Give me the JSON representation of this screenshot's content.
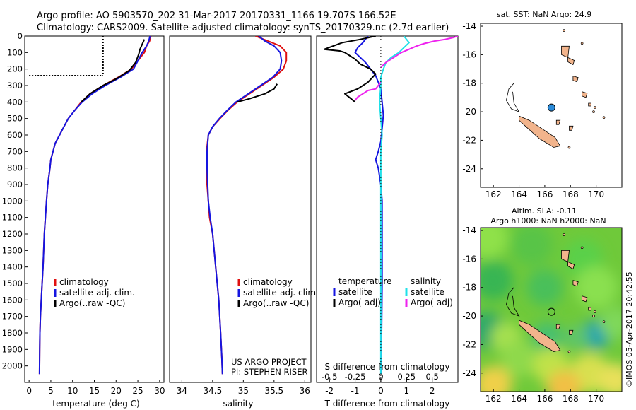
{
  "header": {
    "line1": "Argo profile: AO 5903570_202 31-Mar-2017 20170331_1166 19.707S 166.52E",
    "line2": "Climatology: CARS2009. Satellite-adjusted climatology: synTS_20170329.nc (2.7d earlier)"
  },
  "credit": {
    "project": "US ARGO PROJECT",
    "pi": "PI: STEPHEN RISER",
    "stamp": "©IMOS 05-Apr-2017 20:42:55"
  },
  "colors": {
    "climatology": "#e01010",
    "satellite": "#1515e0",
    "argo": "#000000",
    "salinity_satellite": "#20e0e8",
    "salinity_argo": "#ee22ee",
    "land": "#f2b48c",
    "station": "#2a8ad8"
  },
  "chart_data": [
    {
      "id": "temperature",
      "type": "line",
      "xlabel": "temperature (deg C)",
      "ylabel": "",
      "xlim": [
        -1,
        31
      ],
      "ylim": [
        2100,
        0
      ],
      "xticks": [
        0,
        5,
        10,
        15,
        20,
        25,
        30
      ],
      "yticks": [
        0,
        100,
        200,
        300,
        400,
        500,
        600,
        700,
        800,
        900,
        1000,
        1100,
        1200,
        1300,
        1400,
        1500,
        1600,
        1700,
        1800,
        1900,
        2000
      ],
      "legend": [
        "climatology",
        "satellite-adj. clim.",
        "Argo(..raw -QC)"
      ],
      "series": [
        {
          "name": "climatology",
          "color": "#e01010",
          "x": [
            28,
            27.7,
            27,
            26.5,
            25,
            23.5,
            20.5,
            17,
            14,
            12,
            10.5,
            9,
            8,
            7,
            6,
            5.5,
            5,
            4.8,
            4.3,
            4,
            3.5,
            3.2,
            3,
            2.8,
            2.6,
            2.5,
            2.45,
            2.4
          ],
          "y": [
            0,
            30,
            60,
            100,
            150,
            200,
            250,
            300,
            350,
            400,
            450,
            500,
            550,
            600,
            650,
            700,
            750,
            800,
            900,
            1000,
            1200,
            1400,
            1500,
            1600,
            1700,
            1800,
            1900,
            2050
          ]
        },
        {
          "name": "satellite-adj. clim.",
          "color": "#1515e0",
          "x": [
            27.8,
            27.5,
            27,
            26,
            25,
            24,
            21,
            17.5,
            14.5,
            12.2,
            10.5,
            9,
            8,
            7,
            6,
            5.5,
            5,
            4.8,
            4.3,
            4,
            3.5,
            3.2,
            3,
            2.8,
            2.6,
            2.5,
            2.45,
            2.4
          ],
          "y": [
            0,
            30,
            60,
            100,
            150,
            200,
            250,
            300,
            350,
            400,
            450,
            500,
            550,
            600,
            650,
            700,
            750,
            800,
            900,
            1000,
            1200,
            1400,
            1500,
            1600,
            1700,
            1800,
            1900,
            2050
          ]
        },
        {
          "name": "Argo(..raw -QC)",
          "color": "#000000",
          "x": [
            26.5,
            26,
            25.5,
            25.2,
            24.5,
            23,
            20,
            17,
            14,
            12
          ],
          "y": [
            20,
            50,
            80,
            110,
            160,
            210,
            260,
            300,
            350,
            400
          ]
        }
      ],
      "marks": [
        {
          "name": "Argo dropout vertical",
          "color": "#000000",
          "x": [
            17,
            17
          ],
          "y": [
            0,
            240
          ]
        },
        {
          "name": "Argo dropout horizontal",
          "color": "#000000",
          "x": [
            0,
            17
          ],
          "y": [
            240,
            240
          ]
        }
      ]
    },
    {
      "id": "salinity",
      "type": "line",
      "xlabel": "salinity",
      "ylabel": "",
      "xlim": [
        33.8,
        36.1
      ],
      "ylim": [
        2100,
        0
      ],
      "xticks": [
        34,
        34.5,
        35,
        35.5,
        36
      ],
      "xticklabels": [
        "34",
        "34.5",
        "35",
        "35.5",
        "36"
      ],
      "legend": [
        "climatology",
        "satellite-adj. clim.",
        "Argo(..raw -QC)"
      ],
      "series": [
        {
          "name": "climatology",
          "color": "#e01010",
          "x": [
            35.2,
            35.4,
            35.6,
            35.7,
            35.7,
            35.65,
            35.5,
            35.3,
            35.1,
            34.9,
            34.75,
            34.62,
            34.5,
            34.43,
            34.4,
            34.4,
            34.41,
            34.43,
            34.45,
            34.5,
            34.55,
            34.6,
            34.63,
            34.65,
            34.66
          ],
          "y": [
            0,
            30,
            60,
            100,
            150,
            200,
            250,
            300,
            350,
            400,
            450,
            500,
            550,
            600,
            700,
            800,
            900,
            1000,
            1100,
            1200,
            1400,
            1600,
            1800,
            1950,
            2050
          ]
        },
        {
          "name": "satellite-adj. clim.",
          "color": "#1515e0",
          "x": [
            35.25,
            35.35,
            35.5,
            35.6,
            35.62,
            35.6,
            35.48,
            35.28,
            35.08,
            34.88,
            34.74,
            34.61,
            34.5,
            34.43,
            34.41,
            34.41,
            34.42,
            34.43,
            34.46,
            34.5,
            34.55,
            34.6,
            34.63,
            34.65,
            34.66
          ],
          "y": [
            0,
            30,
            60,
            100,
            150,
            200,
            250,
            300,
            350,
            400,
            450,
            500,
            550,
            600,
            700,
            800,
            900,
            1000,
            1100,
            1200,
            1400,
            1600,
            1800,
            1950,
            2050
          ]
        },
        {
          "name": "Argo(..raw -QC)",
          "color": "#000000",
          "x": [
            35.55,
            35.5,
            35.35,
            35.1,
            34.9
          ],
          "y": [
            290,
            320,
            350,
            380,
            400
          ]
        }
      ]
    },
    {
      "id": "difference",
      "type": "line",
      "xlabel": "T difference from climatology",
      "top_axis_label": "S difference from climatology",
      "xlim": [
        -2.5,
        3
      ],
      "ylim": [
        2100,
        0
      ],
      "xticks": [
        -2,
        -1,
        0,
        1,
        2
      ],
      "top_xticklabels": [
        "-0.5",
        "-0.25",
        "0",
        "0.25",
        "0.5"
      ],
      "legend_headers": [
        "temperature",
        "salinity"
      ],
      "legend": [
        "satellite",
        "Argo(-adj)",
        "satellite",
        "Argo(-adj)"
      ],
      "series": [
        {
          "name": "satellite",
          "quantity": "temperature",
          "color": "#1515e0",
          "x": [
            -0.5,
            -0.6,
            -0.7,
            -0.9,
            -1,
            -0.8,
            -0.6,
            -0.4,
            -0.2,
            -0.1,
            0,
            0.05,
            0.1,
            0.05,
            0,
            -0.1,
            -0.2,
            -0.1,
            0,
            0.05,
            0.05,
            0.05,
            0.03,
            0.02
          ],
          "y": [
            0,
            20,
            40,
            70,
            100,
            130,
            160,
            200,
            240,
            280,
            320,
            400,
            480,
            560,
            640,
            700,
            750,
            800,
            900,
            1000,
            1200,
            1500,
            1800,
            2050
          ]
        },
        {
          "name": "Argo(-adj)",
          "quantity": "temperature",
          "color": "#000000",
          "x": [
            -0.2,
            -0.8,
            -1.5,
            -2.2,
            -1.6,
            -1.4,
            -1.2,
            -1,
            -0.8,
            -0.4,
            -0.2,
            -0.5,
            -0.9,
            -1.4,
            -1.0
          ],
          "y": [
            0,
            20,
            40,
            80,
            90,
            100,
            120,
            140,
            170,
            200,
            230,
            280,
            320,
            350,
            400
          ]
        },
        {
          "name": "satellite",
          "quantity": "salinity",
          "color": "#20e0e8",
          "x": [
            0.9,
            1.0,
            1.1,
            0.9,
            0.7,
            0.4,
            0.2,
            0.1,
            0,
            0,
            -0.05,
            0,
            0.05,
            0,
            0,
            0,
            0,
            0,
            0,
            0
          ],
          "y": [
            0,
            20,
            40,
            70,
            100,
            130,
            160,
            200,
            250,
            300,
            400,
            500,
            600,
            700,
            800,
            1000,
            1400,
            1700,
            1900,
            2050
          ]
        },
        {
          "name": "Argo(-adj)",
          "quantity": "salinity",
          "color": "#ee22ee",
          "x": [
            3,
            2.8,
            2.5,
            2.1,
            1.7,
            1.4,
            1.1,
            0.8,
            0.5,
            0.2,
            0
          ],
          "y": [
            0,
            10,
            20,
            30,
            45,
            60,
            80,
            100,
            130,
            160,
            190
          ]
        },
        {
          "name": "Argo(-adj) deep",
          "quantity": "salinity",
          "color": "#ee22ee",
          "x": [
            0,
            -0.1,
            -0.2,
            -0.5,
            -0.7,
            -0.9,
            -1.0
          ],
          "y": [
            280,
            300,
            320,
            330,
            350,
            370,
            390
          ]
        }
      ]
    },
    {
      "id": "sst-map",
      "type": "scatter",
      "title": "sat. SST: NaN Argo: 24.9",
      "xlim": [
        161,
        172
      ],
      "ylim": [
        -25.3,
        -13.8
      ],
      "xticks": [
        162,
        164,
        166,
        168,
        170
      ],
      "yticks": [
        -14,
        -16,
        -18,
        -20,
        -22,
        -24
      ],
      "station": {
        "lon": 166.52,
        "lat": -19.707
      }
    },
    {
      "id": "sla-map",
      "type": "heatmap",
      "title_line1": "Altim. SLA: -0.11",
      "title_line2": "Argo h1000: NaN h2000: NaN",
      "xlim": [
        161,
        172
      ],
      "ylim": [
        -25.3,
        -13.8
      ],
      "xticks": [
        162,
        164,
        166,
        168,
        170
      ],
      "yticks": [
        -14,
        -16,
        -18,
        -20,
        -22,
        -24
      ],
      "station": {
        "lon": 166.52,
        "lat": -19.707
      }
    }
  ]
}
